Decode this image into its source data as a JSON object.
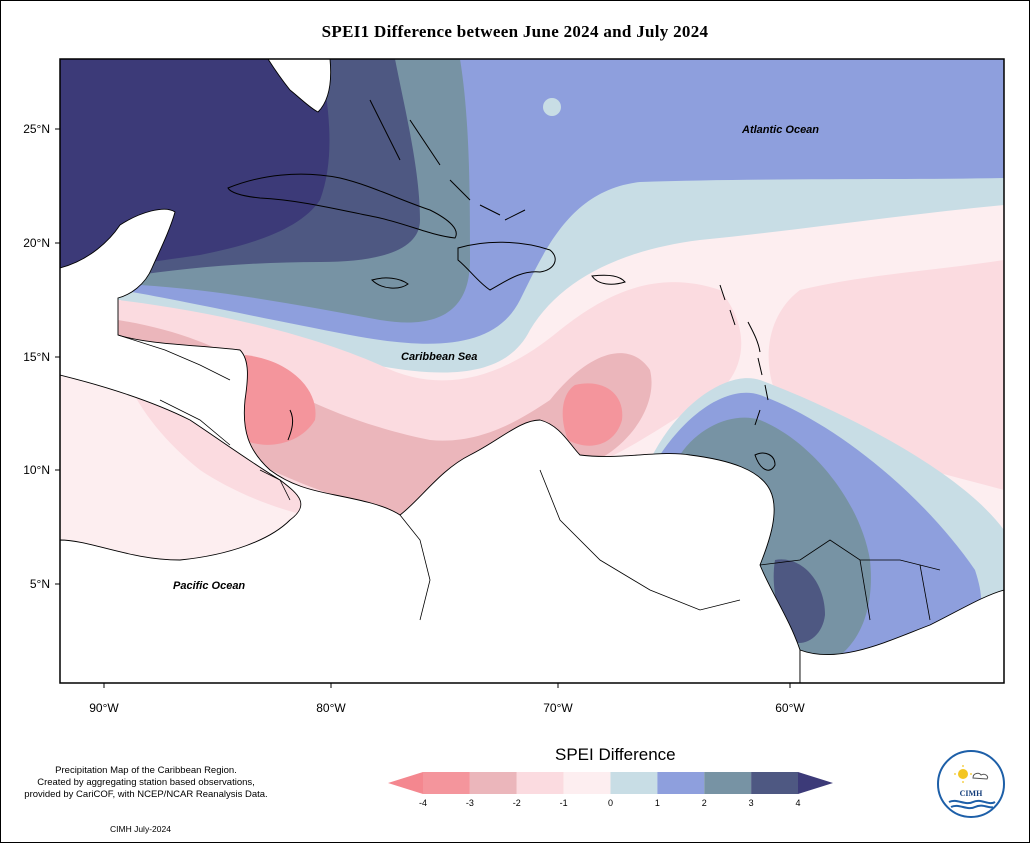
{
  "title": "SPEI1 Difference between June 2024 and July 2024",
  "map": {
    "lat_ticks": [
      "25°N",
      "20°N",
      "15°N",
      "10°N",
      "5°N"
    ],
    "lon_ticks": [
      "90°W",
      "80°W",
      "70°W",
      "60°W"
    ],
    "labels": {
      "atlantic": "Atlantic Ocean",
      "caribbean": "Caribbean Sea",
      "pacific": "Pacific Ocean"
    }
  },
  "legend": {
    "title": "SPEI Difference",
    "ticks": [
      "-4",
      "-3",
      "-2",
      "-1",
      "0",
      "1",
      "2",
      "3",
      "4"
    ],
    "bins": [
      {
        "range": "-4 to -3",
        "color": "#f4959c"
      },
      {
        "range": "-3 to -2",
        "color": "#ebb6bb"
      },
      {
        "range": "-2 to -1",
        "color": "#fbdbe0"
      },
      {
        "range": "-1 to 0",
        "color": "#fdeef0"
      },
      {
        "range": "0 to 1",
        "color": "#c8dde5"
      },
      {
        "range": "1 to 2",
        "color": "#8e9fdd"
      },
      {
        "range": "2 to 3",
        "color": "#7793a4"
      },
      {
        "range": "3 to 4",
        "color": "#4e5882"
      }
    ],
    "under_color": "#f4878f",
    "over_color": "#3c3a78"
  },
  "notes": {
    "line1": "Precipitation Map of the Caribbean Region.",
    "line2": "Created by aggregating station based observations,",
    "line3": "provided by CariCOF, with NCEP/NCAR Reanalysis Data."
  },
  "credit": "CIMH July-2024",
  "logo": {
    "abbr": "CIMH"
  }
}
